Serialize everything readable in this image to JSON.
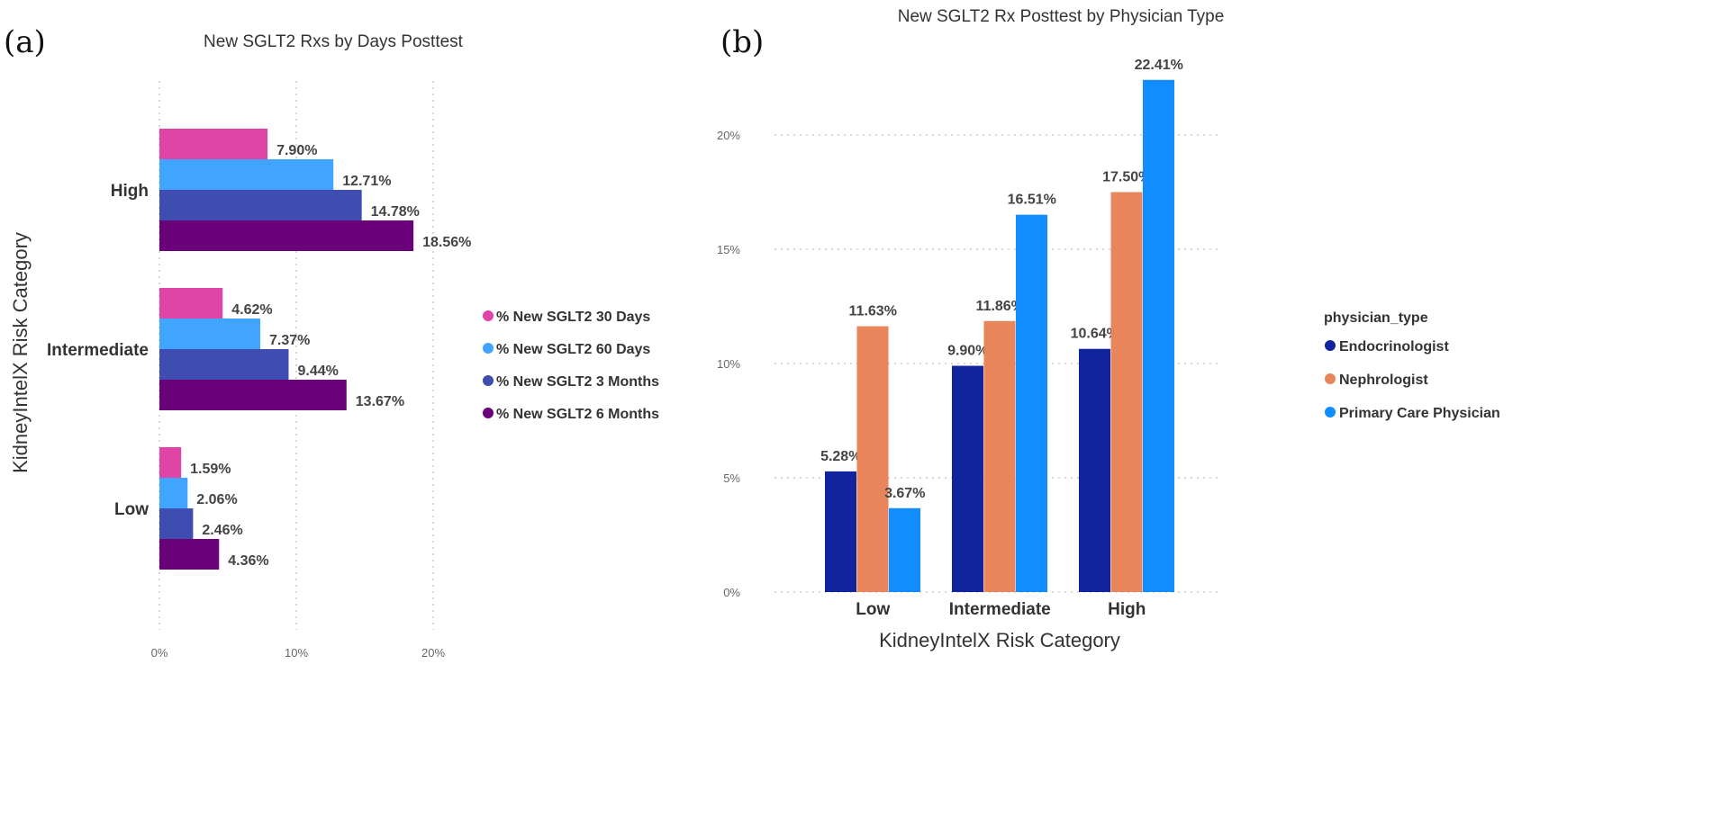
{
  "chart_data": [
    {
      "panel": "(a)",
      "type": "bar",
      "orientation": "horizontal",
      "title": "New SGLT2 Rxs by Days Posttest",
      "xlabel": "",
      "ylabel": "KidneyIntelX Risk Category",
      "categories": [
        "High",
        "Intermediate",
        "Low"
      ],
      "xlim": [
        0,
        20
      ],
      "xticks": [
        "0%",
        "10%",
        "20%"
      ],
      "grid": true,
      "legend_position": "right",
      "series": [
        {
          "name": "% New SGLT2 30 Days",
          "color": "#E044A7",
          "values": [
            7.9,
            4.62,
            1.59
          ],
          "labels": [
            "7.90%",
            "4.62%",
            "1.59%"
          ]
        },
        {
          "name": "% New SGLT2 60 Days",
          "color": "#41A4FF",
          "values": [
            12.71,
            7.37,
            2.06
          ],
          "labels": [
            "12.71%",
            "7.37%",
            "2.06%"
          ]
        },
        {
          "name": "% New SGLT2 3 Months",
          "color": "#3F4DB1",
          "values": [
            14.78,
            9.44,
            2.46
          ],
          "labels": [
            "14.78%",
            "9.44%",
            "2.46%"
          ]
        },
        {
          "name": "% New SGLT2 6 Months",
          "color": "#6B007B",
          "values": [
            18.56,
            13.67,
            4.36
          ],
          "labels": [
            "18.56%",
            "13.67%",
            "4.36%"
          ]
        }
      ]
    },
    {
      "panel": "(b)",
      "type": "bar",
      "orientation": "vertical",
      "title": "New SGLT2 Rx Posttest by Physician Type",
      "xlabel": "KidneyIntelX Risk Category",
      "ylabel": "",
      "categories": [
        "Low",
        "Intermediate",
        "High"
      ],
      "ylim": [
        0,
        25
      ],
      "yticks": [
        "0%",
        "5%",
        "10%",
        "15%",
        "20%"
      ],
      "grid": true,
      "legend_title": "physician_type",
      "legend_position": "right",
      "series": [
        {
          "name": "Endocrinologist",
          "color": "#12239E",
          "values": [
            5.28,
            9.9,
            10.64
          ],
          "labels": [
            "5.28%",
            "9.90%",
            "10.64%"
          ]
        },
        {
          "name": "Nephrologist",
          "color": "#E8855A",
          "values": [
            11.63,
            11.86,
            17.5
          ],
          "labels": [
            "11.63%",
            "11.86%",
            "17.50%"
          ]
        },
        {
          "name": "Primary Care Physician",
          "color": "#118DFF",
          "values": [
            3.67,
            16.51,
            22.41
          ],
          "labels": [
            "3.67%",
            "16.51%",
            "22.41%"
          ]
        }
      ]
    }
  ]
}
